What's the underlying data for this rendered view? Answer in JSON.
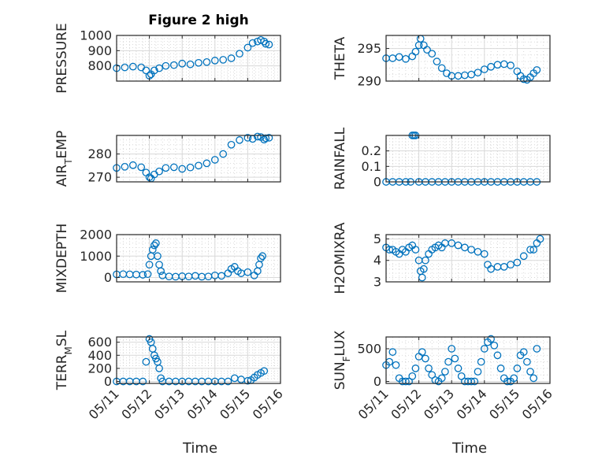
{
  "figure": {
    "title": "Figure 2 high",
    "x_label": "Time",
    "x_tick_labels": [
      "05/11",
      "05/12",
      "05/13",
      "05/14",
      "05/15",
      "05/16"
    ],
    "marker_color": "#0072bd"
  },
  "chart_data": [
    {
      "type": "scatter",
      "title": "Figure 2 high",
      "ylabel": "PRESSURE",
      "ylim": [
        700,
        1000
      ],
      "yticks": [
        800,
        900,
        1000
      ],
      "xlim": [
        0,
        5
      ],
      "grid": true,
      "x": [
        0.0,
        0.25,
        0.5,
        0.75,
        0.9,
        1.0,
        1.05,
        1.15,
        1.3,
        1.5,
        1.75,
        2.0,
        2.25,
        2.5,
        2.75,
        3.0,
        3.25,
        3.5,
        3.75,
        4.0,
        4.15,
        4.3,
        4.4,
        4.5,
        4.55,
        4.65
      ],
      "y": [
        785,
        790,
        795,
        790,
        770,
        735,
        745,
        770,
        785,
        800,
        805,
        815,
        810,
        820,
        825,
        835,
        840,
        850,
        880,
        920,
        950,
        960,
        970,
        960,
        945,
        940
      ]
    },
    {
      "type": "scatter",
      "ylabel": "THETA",
      "ylim": [
        290,
        297
      ],
      "yticks": [
        290,
        295
      ],
      "xlim": [
        0,
        5
      ],
      "grid": true,
      "x": [
        0.0,
        0.2,
        0.4,
        0.6,
        0.8,
        0.9,
        1.0,
        1.05,
        1.15,
        1.25,
        1.4,
        1.55,
        1.7,
        1.85,
        2.0,
        2.2,
        2.4,
        2.6,
        2.8,
        3.0,
        3.2,
        3.4,
        3.6,
        3.8,
        4.0,
        4.1,
        4.2,
        4.3,
        4.4,
        4.5,
        4.6
      ],
      "y": [
        293.5,
        293.5,
        293.7,
        293.4,
        293.8,
        294.5,
        295.5,
        296.5,
        295.5,
        294.8,
        294.2,
        293.0,
        292.0,
        291.2,
        290.8,
        290.8,
        290.9,
        291.0,
        291.3,
        291.8,
        292.2,
        292.5,
        292.6,
        292.4,
        291.5,
        290.8,
        290.3,
        290.2,
        290.6,
        291.2,
        291.7
      ]
    },
    {
      "type": "scatter",
      "ylabel": "AIR_TEMP",
      "ylim": [
        268,
        288
      ],
      "yticks": [
        270,
        280
      ],
      "xlim": [
        0,
        5
      ],
      "grid": true,
      "x": [
        0.0,
        0.25,
        0.5,
        0.75,
        0.9,
        1.0,
        1.05,
        1.15,
        1.3,
        1.5,
        1.75,
        2.0,
        2.25,
        2.5,
        2.75,
        3.0,
        3.25,
        3.5,
        3.75,
        4.0,
        4.15,
        4.3,
        4.4,
        4.5,
        4.55,
        4.65
      ],
      "y": [
        274,
        274.5,
        275.2,
        274.3,
        272,
        270,
        269.5,
        271.2,
        272.5,
        274,
        274.3,
        273.6,
        274.2,
        275,
        276,
        277.5,
        280,
        284,
        286,
        287,
        286.5,
        287.5,
        287.3,
        286.2,
        286.8,
        287
      ]
    },
    {
      "type": "scatter",
      "ylabel": "RAINFALL",
      "ylim": [
        0,
        0.3
      ],
      "yticks": [
        0,
        0.1,
        0.2
      ],
      "xlim": [
        0,
        5
      ],
      "grid": true,
      "x": [
        0.0,
        0.2,
        0.4,
        0.6,
        0.75,
        0.8,
        0.85,
        0.9,
        1.0,
        1.2,
        1.4,
        1.6,
        1.8,
        2.0,
        2.2,
        2.4,
        2.6,
        2.8,
        3.0,
        3.2,
        3.4,
        3.6,
        3.8,
        4.0,
        4.2,
        4.4,
        4.6
      ],
      "y": [
        0,
        0,
        0,
        0,
        0,
        0.3,
        0.3,
        0.3,
        0,
        0,
        0,
        0,
        0,
        0,
        0,
        0,
        0,
        0,
        0,
        0,
        0,
        0,
        0,
        0,
        0,
        0,
        0
      ]
    },
    {
      "type": "scatter",
      "ylabel": "MIXDEPTH",
      "ylim": [
        -200,
        2000
      ],
      "yticks": [
        0,
        1000,
        2000
      ],
      "xlim": [
        0,
        5
      ],
      "grid": true,
      "x": [
        0.0,
        0.2,
        0.4,
        0.6,
        0.8,
        0.95,
        1.0,
        1.05,
        1.1,
        1.15,
        1.2,
        1.25,
        1.3,
        1.35,
        1.4,
        1.6,
        1.8,
        2.0,
        2.2,
        2.4,
        2.6,
        2.8,
        3.0,
        3.2,
        3.4,
        3.5,
        3.6,
        3.7,
        3.8,
        4.0,
        4.2,
        4.3,
        4.35,
        4.4,
        4.45
      ],
      "y": [
        150,
        160,
        150,
        140,
        130,
        160,
        600,
        1000,
        1300,
        1500,
        1600,
        1000,
        600,
        300,
        100,
        50,
        40,
        60,
        50,
        80,
        40,
        50,
        100,
        80,
        200,
        400,
        500,
        300,
        200,
        250,
        100,
        300,
        600,
        900,
        1000
      ]
    },
    {
      "type": "scatter",
      "ylabel": "H2OMIXRA",
      "ylim": [
        3,
        5.2
      ],
      "yticks": [
        3,
        4,
        5
      ],
      "xlim": [
        0,
        5
      ],
      "grid": true,
      "x": [
        0.0,
        0.1,
        0.2,
        0.3,
        0.4,
        0.5,
        0.6,
        0.7,
        0.8,
        0.9,
        1.0,
        1.05,
        1.1,
        1.15,
        1.2,
        1.3,
        1.4,
        1.5,
        1.6,
        1.7,
        1.8,
        2.0,
        2.2,
        2.4,
        2.6,
        2.8,
        3.0,
        3.1,
        3.2,
        3.4,
        3.6,
        3.8,
        4.0,
        4.2,
        4.4,
        4.5,
        4.6,
        4.7
      ],
      "y": [
        4.6,
        4.5,
        4.5,
        4.4,
        4.3,
        4.5,
        4.4,
        4.6,
        4.7,
        4.5,
        4.0,
        3.5,
        3.2,
        3.6,
        4.0,
        4.3,
        4.5,
        4.6,
        4.7,
        4.6,
        4.8,
        4.8,
        4.7,
        4.6,
        4.5,
        4.4,
        4.3,
        3.8,
        3.6,
        3.7,
        3.7,
        3.8,
        3.9,
        4.2,
        4.5,
        4.5,
        4.8,
        5.0
      ]
    },
    {
      "type": "scatter",
      "ylabel": "TERR_MSL",
      "ylim": [
        -30,
        680
      ],
      "yticks": [
        0,
        200,
        400,
        600
      ],
      "xlim": [
        0,
        5
      ],
      "grid": true,
      "x": [
        0.0,
        0.2,
        0.4,
        0.6,
        0.8,
        0.9,
        1.0,
        1.05,
        1.1,
        1.15,
        1.2,
        1.25,
        1.3,
        1.35,
        1.4,
        1.6,
        1.8,
        2.0,
        2.2,
        2.4,
        2.6,
        2.8,
        3.0,
        3.2,
        3.4,
        3.6,
        3.8,
        4.0,
        4.1,
        4.2,
        4.3,
        4.4,
        4.5
      ],
      "y": [
        0,
        0,
        0,
        0,
        0,
        300,
        650,
        600,
        500,
        400,
        350,
        300,
        200,
        50,
        0,
        0,
        0,
        0,
        0,
        0,
        0,
        0,
        0,
        0,
        0,
        50,
        30,
        10,
        20,
        60,
        100,
        130,
        160
      ]
    },
    {
      "type": "scatter",
      "ylabel": "SUN_FLUX",
      "ylim": [
        -30,
        680
      ],
      "yticks": [
        0,
        500
      ],
      "xlim": [
        0,
        5
      ],
      "grid": true,
      "x": [
        0.0,
        0.1,
        0.2,
        0.3,
        0.4,
        0.5,
        0.6,
        0.7,
        0.8,
        0.9,
        1.0,
        1.1,
        1.2,
        1.3,
        1.4,
        1.5,
        1.6,
        1.7,
        1.8,
        1.9,
        2.0,
        2.1,
        2.2,
        2.3,
        2.4,
        2.5,
        2.6,
        2.7,
        2.8,
        2.9,
        3.0,
        3.1,
        3.2,
        3.3,
        3.4,
        3.5,
        3.6,
        3.7,
        3.8,
        3.9,
        4.0,
        4.1,
        4.2,
        4.3,
        4.4,
        4.5,
        4.6
      ],
      "y": [
        250,
        300,
        450,
        250,
        50,
        0,
        0,
        0,
        80,
        200,
        380,
        450,
        350,
        200,
        100,
        20,
        0,
        50,
        150,
        300,
        500,
        350,
        200,
        80,
        0,
        0,
        0,
        0,
        150,
        300,
        500,
        600,
        650,
        550,
        400,
        200,
        50,
        0,
        0,
        50,
        200,
        400,
        450,
        300,
        150,
        50,
        500
      ]
    }
  ]
}
